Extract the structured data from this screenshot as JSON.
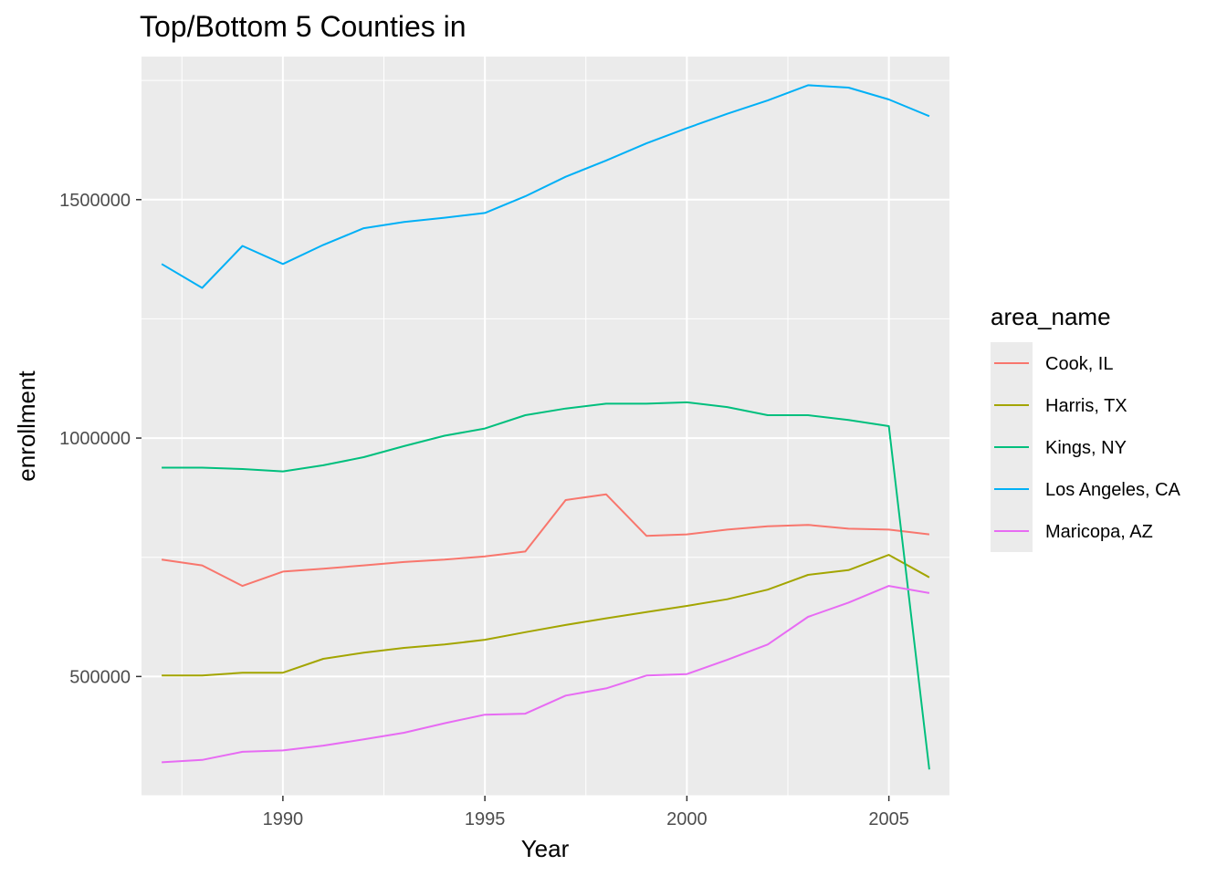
{
  "chart_data": {
    "type": "line",
    "title": "Top/Bottom 5 Counties in",
    "xlabel": "Year",
    "ylabel": "enrollment",
    "xlim": [
      1986.5,
      2006.5
    ],
    "ylim": [
      250000,
      1800000
    ],
    "x_ticks": [
      1990,
      1995,
      2000,
      2005
    ],
    "y_ticks": [
      500000,
      1000000,
      1500000
    ],
    "grid": true,
    "legend": {
      "title": "area_name",
      "position": "right"
    },
    "x": [
      1987,
      1988,
      1989,
      1990,
      1991,
      1992,
      1993,
      1994,
      1995,
      1996,
      1997,
      1998,
      1999,
      2000,
      2001,
      2002,
      2003,
      2004,
      2005,
      2006
    ],
    "series": [
      {
        "name": "Cook, IL",
        "color": "#F8766D",
        "values": [
          745000,
          733000,
          690000,
          720000,
          726000,
          733000,
          740000,
          745000,
          752000,
          762000,
          870000,
          882000,
          795000,
          798000,
          808000,
          815000,
          818000,
          810000,
          808000,
          798000
        ]
      },
      {
        "name": "Harris, TX",
        "color": "#A3A500",
        "values": [
          502000,
          502000,
          508000,
          508000,
          537000,
          550000,
          560000,
          567000,
          577000,
          593000,
          608000,
          622000,
          635000,
          648000,
          662000,
          682000,
          713000,
          723000,
          755000,
          708000
        ]
      },
      {
        "name": "Kings, NY",
        "color": "#00BF7D",
        "values": [
          938000,
          938000,
          935000,
          930000,
          943000,
          960000,
          983000,
          1005000,
          1020000,
          1048000,
          1062000,
          1072000,
          1072000,
          1075000,
          1065000,
          1048000,
          1048000,
          1038000,
          1025000,
          305000
        ]
      },
      {
        "name": "Los Angeles, CA",
        "color": "#00B0F6",
        "values": [
          1365000,
          1315000,
          1403000,
          1365000,
          1405000,
          1440000,
          1453000,
          1462000,
          1472000,
          1507000,
          1548000,
          1582000,
          1618000,
          1650000,
          1680000,
          1708000,
          1740000,
          1735000,
          1710000,
          1675000
        ]
      },
      {
        "name": "Maricopa, AZ",
        "color": "#E76BF3",
        "values": [
          320000,
          325000,
          342000,
          345000,
          355000,
          368000,
          382000,
          402000,
          420000,
          422000,
          460000,
          475000,
          502000,
          505000,
          535000,
          567000,
          625000,
          655000,
          690000,
          675000
        ]
      }
    ]
  }
}
